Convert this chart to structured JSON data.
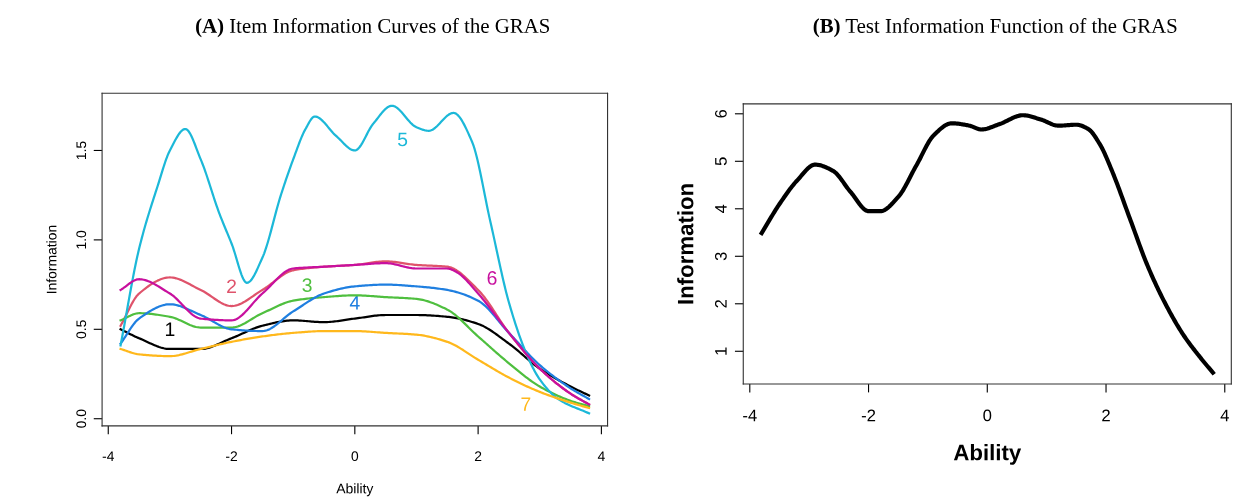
{
  "chart_data": [
    {
      "type": "line",
      "title": "(A) Item Information Curves of the GRAS",
      "xlabel": "Ability",
      "ylabel": "Information",
      "x": [
        -3.8,
        -3.5,
        -3,
        -2.5,
        -2,
        -1.5,
        -1,
        -0.5,
        0,
        0.5,
        1,
        1.5,
        2,
        2.5,
        3,
        3.5,
        3.8
      ],
      "series": [
        {
          "color": "#000000",
          "values": [
            0.5,
            0.45,
            0.39,
            0.39,
            0.45,
            0.52,
            0.55,
            0.54,
            0.56,
            0.58,
            0.58,
            0.57,
            0.53,
            0.42,
            0.28,
            0.18,
            0.13
          ]
        },
        {
          "color": "#df536b",
          "values": [
            0.52,
            0.7,
            0.79,
            0.72,
            0.63,
            0.72,
            0.83,
            0.85,
            0.86,
            0.88,
            0.86,
            0.85,
            0.72,
            0.48,
            0.28,
            0.14,
            0.08
          ]
        },
        {
          "color": "#4fbf3f",
          "values": [
            0.55,
            0.59,
            0.57,
            0.51,
            0.51,
            0.59,
            0.66,
            0.68,
            0.69,
            0.68,
            0.67,
            0.61,
            0.46,
            0.31,
            0.18,
            0.1,
            0.07
          ]
        },
        {
          "color": "#1f7fe0",
          "values": [
            0.42,
            0.56,
            0.64,
            0.58,
            0.5,
            0.49,
            0.6,
            0.7,
            0.74,
            0.75,
            0.74,
            0.72,
            0.66,
            0.48,
            0.3,
            0.17,
            0.11
          ]
        },
        {
          "color": "#1cb8d8",
          "x": [
            -3.8,
            -3.5,
            -3.2,
            -3,
            -2.75,
            -2.5,
            -2.2,
            -2,
            -1.75,
            -1.5,
            -1.2,
            -1,
            -0.8,
            -0.65,
            -0.3,
            0,
            0.3,
            0.6,
            1,
            1.2,
            1.6,
            1.9,
            2.2,
            2.5,
            2.8,
            3,
            3.3,
            3.8
          ],
          "values": [
            0.41,
            0.95,
            1.3,
            1.5,
            1.62,
            1.45,
            1.15,
            0.98,
            0.76,
            0.9,
            1.25,
            1.45,
            1.62,
            1.69,
            1.58,
            1.5,
            1.65,
            1.75,
            1.63,
            1.61,
            1.71,
            1.55,
            1.1,
            0.65,
            0.35,
            0.22,
            0.11,
            0.03
          ]
        },
        {
          "color": "#c8109e",
          "x": [
            -3.8,
            -3.5,
            -3,
            -2.5,
            -2,
            -1.5,
            -1,
            -0.5,
            0,
            0.5,
            1,
            1.5,
            1.65,
            2,
            2.5,
            3,
            3.5,
            3.8
          ],
          "values": [
            0.72,
            0.78,
            0.7,
            0.56,
            0.55,
            0.7,
            0.84,
            0.85,
            0.86,
            0.87,
            0.84,
            0.84,
            0.82,
            0.7,
            0.48,
            0.28,
            0.14,
            0.08
          ]
        },
        {
          "color": "#ffb81c",
          "values": [
            0.39,
            0.36,
            0.35,
            0.39,
            0.43,
            0.46,
            0.48,
            0.49,
            0.49,
            0.48,
            0.47,
            0.43,
            0.33,
            0.23,
            0.15,
            0.09,
            0.06
          ]
        }
      ],
      "annotations": [
        {
          "text": "1",
          "x": -3,
          "y": 0.39
        },
        {
          "text": "2",
          "x": -2,
          "y": 0.63
        },
        {
          "text": "3",
          "x": -1,
          "y": 0.66
        },
        {
          "text": "4",
          "x": 0,
          "y": 0.74
        },
        {
          "text": "5",
          "x": 1,
          "y": 1.63
        },
        {
          "text": "6",
          "x": 2,
          "y": 0.7
        },
        {
          "text": "7",
          "x": 3,
          "y": 0.15
        }
      ],
      "xlim": [
        -4.1,
        4.1
      ],
      "ylim": [
        -0.04,
        1.82
      ],
      "xticks": [
        -4,
        -2,
        0,
        2,
        4
      ],
      "yticks": [
        {
          "value": 0,
          "label": "0.0"
        },
        0.5,
        {
          "value": 1,
          "label": "1.0"
        },
        1.5
      ],
      "grid": false
    },
    {
      "type": "line",
      "title": "(B) Test Information Function of the GRAS",
      "xlabel": "Ability",
      "ylabel": "Information",
      "x": [
        -3.8,
        -3.5,
        -3.2,
        -2.9,
        -2.6,
        -2.3,
        -2,
        -1.8,
        -1.5,
        -1.2,
        -0.9,
        -0.6,
        -0.3,
        -0.1,
        0.2,
        0.6,
        0.9,
        1.2,
        1.5,
        1.7,
        1.9,
        2.1,
        2.4,
        2.7,
        3,
        3.3,
        3.6,
        3.8
      ],
      "series": [
        {
          "color": "#000000",
          "values": [
            3.49,
            4.1,
            4.6,
            4.93,
            4.8,
            4.35,
            3.95,
            3.95,
            4.25,
            4.9,
            5.55,
            5.8,
            5.75,
            5.67,
            5.78,
            5.97,
            5.88,
            5.75,
            5.77,
            5.68,
            5.35,
            4.8,
            3.8,
            2.8,
            2.0,
            1.35,
            0.85,
            0.55
          ]
        }
      ],
      "xlim": [
        -4.11,
        4.11
      ],
      "ylim": [
        0.31,
        6.21
      ],
      "xticks": [
        -4,
        -2,
        0,
        2,
        4
      ],
      "yticks": [
        1,
        2,
        3,
        4,
        5,
        6
      ],
      "grid": false
    }
  ]
}
